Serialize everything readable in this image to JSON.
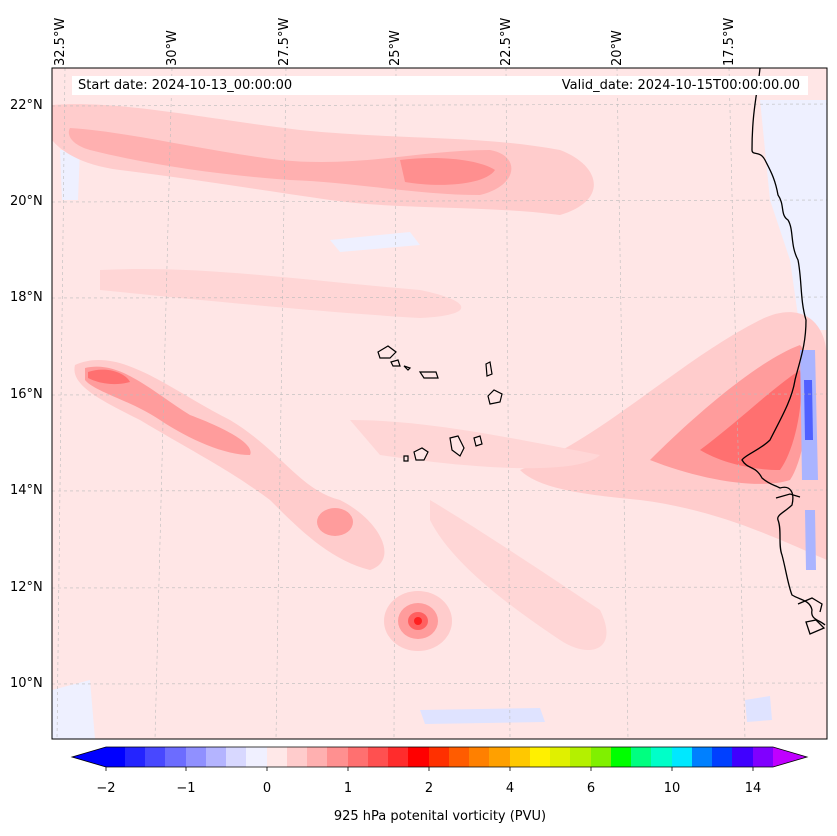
{
  "map": {
    "longitude_labels": [
      "32.5°W",
      "30°W",
      "27.5°W",
      "25°W",
      "22.5°W",
      "20°W",
      "17.5°W"
    ],
    "latitude_labels": [
      "22°N",
      "20°N",
      "18°N",
      "16°N",
      "14°N",
      "12°N",
      "10°N"
    ],
    "start_date": "Start date: 2024-10-13_00:00:00",
    "valid_date": "Valid_date: 2024-10-15T00:00:00.00",
    "variable": "925 hPa potenital vorticity (PVU)",
    "colorbar_ticks": [
      "−2",
      "−1",
      "0",
      "1",
      "2",
      "4",
      "6",
      "10",
      "14"
    ],
    "colors": {
      "land_outline": "#000000",
      "weak_positive": "#ffe4e4",
      "moderate_positive": "#ffc8c8",
      "strong_positive": "#ff8c8c",
      "negative": "#e8ecff",
      "strong_negative": "#6070ff"
    }
  }
}
